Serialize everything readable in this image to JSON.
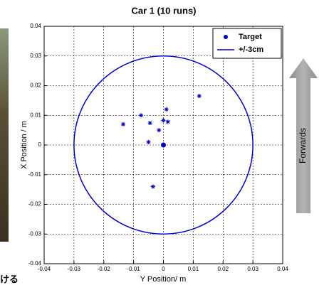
{
  "chart_data": {
    "type": "scatter",
    "title": "Car 1 (10 runs)",
    "xlabel": "Y Position/ m",
    "ylabel": "X Position / m",
    "annotation": "Forwards",
    "side_text": "ける",
    "xlim": [
      -0.04,
      0.04
    ],
    "ylim": [
      -0.04,
      0.04
    ],
    "xticks": [
      -0.04,
      -0.03,
      -0.02,
      -0.01,
      0,
      0.01,
      0.02,
      0.03,
      0.04
    ],
    "yticks": [
      -0.04,
      -0.03,
      -0.02,
      -0.01,
      0,
      0.01,
      0.02,
      0.03,
      0.04
    ],
    "grid": true,
    "legend": "upper right",
    "series": [
      {
        "color": "#0000cc",
        "marker": "star",
        "x": [
          0.012,
          0.001,
          -0.0075,
          -0.0135,
          -0.0045,
          0.0,
          0.0015,
          -0.0015,
          -0.005,
          -0.0035
        ],
        "values": [
          0.0165,
          0.012,
          0.01,
          0.007,
          0.0074,
          0.0083,
          0.0078,
          0.005,
          0.001,
          -0.014
        ]
      },
      {
        "name": "Target",
        "color": "#0000cc",
        "marker": "dot",
        "x": [
          0
        ],
        "values": [
          0
        ]
      },
      {
        "name": "+/-3cm",
        "color": "#0000cc",
        "marker": "circle",
        "center": [
          0,
          0
        ],
        "radius": 0.03
      }
    ]
  }
}
